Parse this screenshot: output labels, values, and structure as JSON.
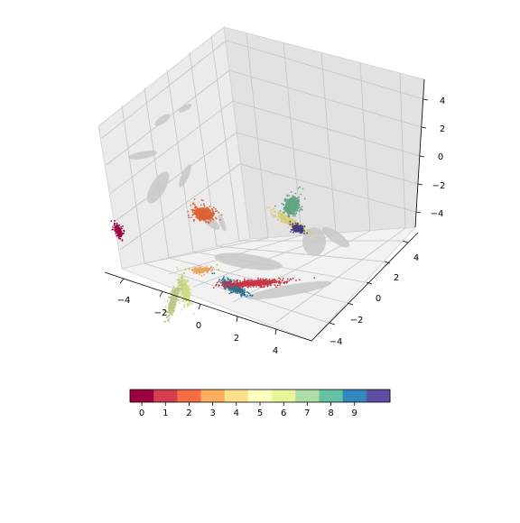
{
  "chart_data": {
    "type": "scatter",
    "projection": "3d",
    "grid": true,
    "x_ticks": [
      "−4",
      "−2",
      "0",
      "2",
      "4"
    ],
    "y_ticks": [
      "−4",
      "−2",
      "0",
      "2",
      "4"
    ],
    "z_ticks": [
      "−4",
      "−2",
      "0",
      "2",
      "4"
    ],
    "xlim": [
      -5,
      5
    ],
    "ylim": [
      -5,
      5
    ],
    "zlim": [
      -5,
      5
    ],
    "colorbar": {
      "ticks": [
        "0",
        "1",
        "2",
        "3",
        "4",
        "5",
        "6",
        "7",
        "8",
        "9"
      ],
      "colors": [
        "#9e0142",
        "#d53e4f",
        "#f46d43",
        "#fdae61",
        "#fee08b",
        "#ffffbf",
        "#e6f598",
        "#abdda4",
        "#66c2a5",
        "#3288bd",
        "#5e4fa2"
      ]
    },
    "clusters": [
      {
        "label": 0,
        "color": "#9e0142",
        "center": [
          -3.8,
          -1.5,
          1.6
        ]
      },
      {
        "label": 1,
        "color": "#c83546",
        "center": [
          2.0,
          0.6,
          -1.1
        ]
      },
      {
        "label": 2,
        "color": "#dd6232",
        "center": [
          -1.0,
          1.5,
          1.8
        ]
      },
      {
        "label": 3,
        "color": "#e7a55d",
        "center": [
          -0.4,
          0.0,
          -0.8
        ]
      },
      {
        "label": 4,
        "color": "#d8cd7a",
        "center": [
          2.3,
          3.7,
          1.0
        ]
      },
      {
        "label": 5,
        "color": "#d0dc85",
        "center": [
          -0.8,
          -1.0,
          -1.6
        ]
      },
      {
        "label": 6,
        "color": "#bcc886",
        "center": [
          -1.2,
          -1.4,
          -2.2
        ]
      },
      {
        "label": 7,
        "color": "#5fa37f",
        "center": [
          2.5,
          3.6,
          2.3
        ]
      },
      {
        "label": 8,
        "color": "#2d6e8e",
        "center": [
          0.8,
          0.6,
          -1.9
        ]
      },
      {
        "label": 9,
        "color": "#46397e",
        "center": [
          2.6,
          3.8,
          0.6
        ]
      }
    ]
  }
}
